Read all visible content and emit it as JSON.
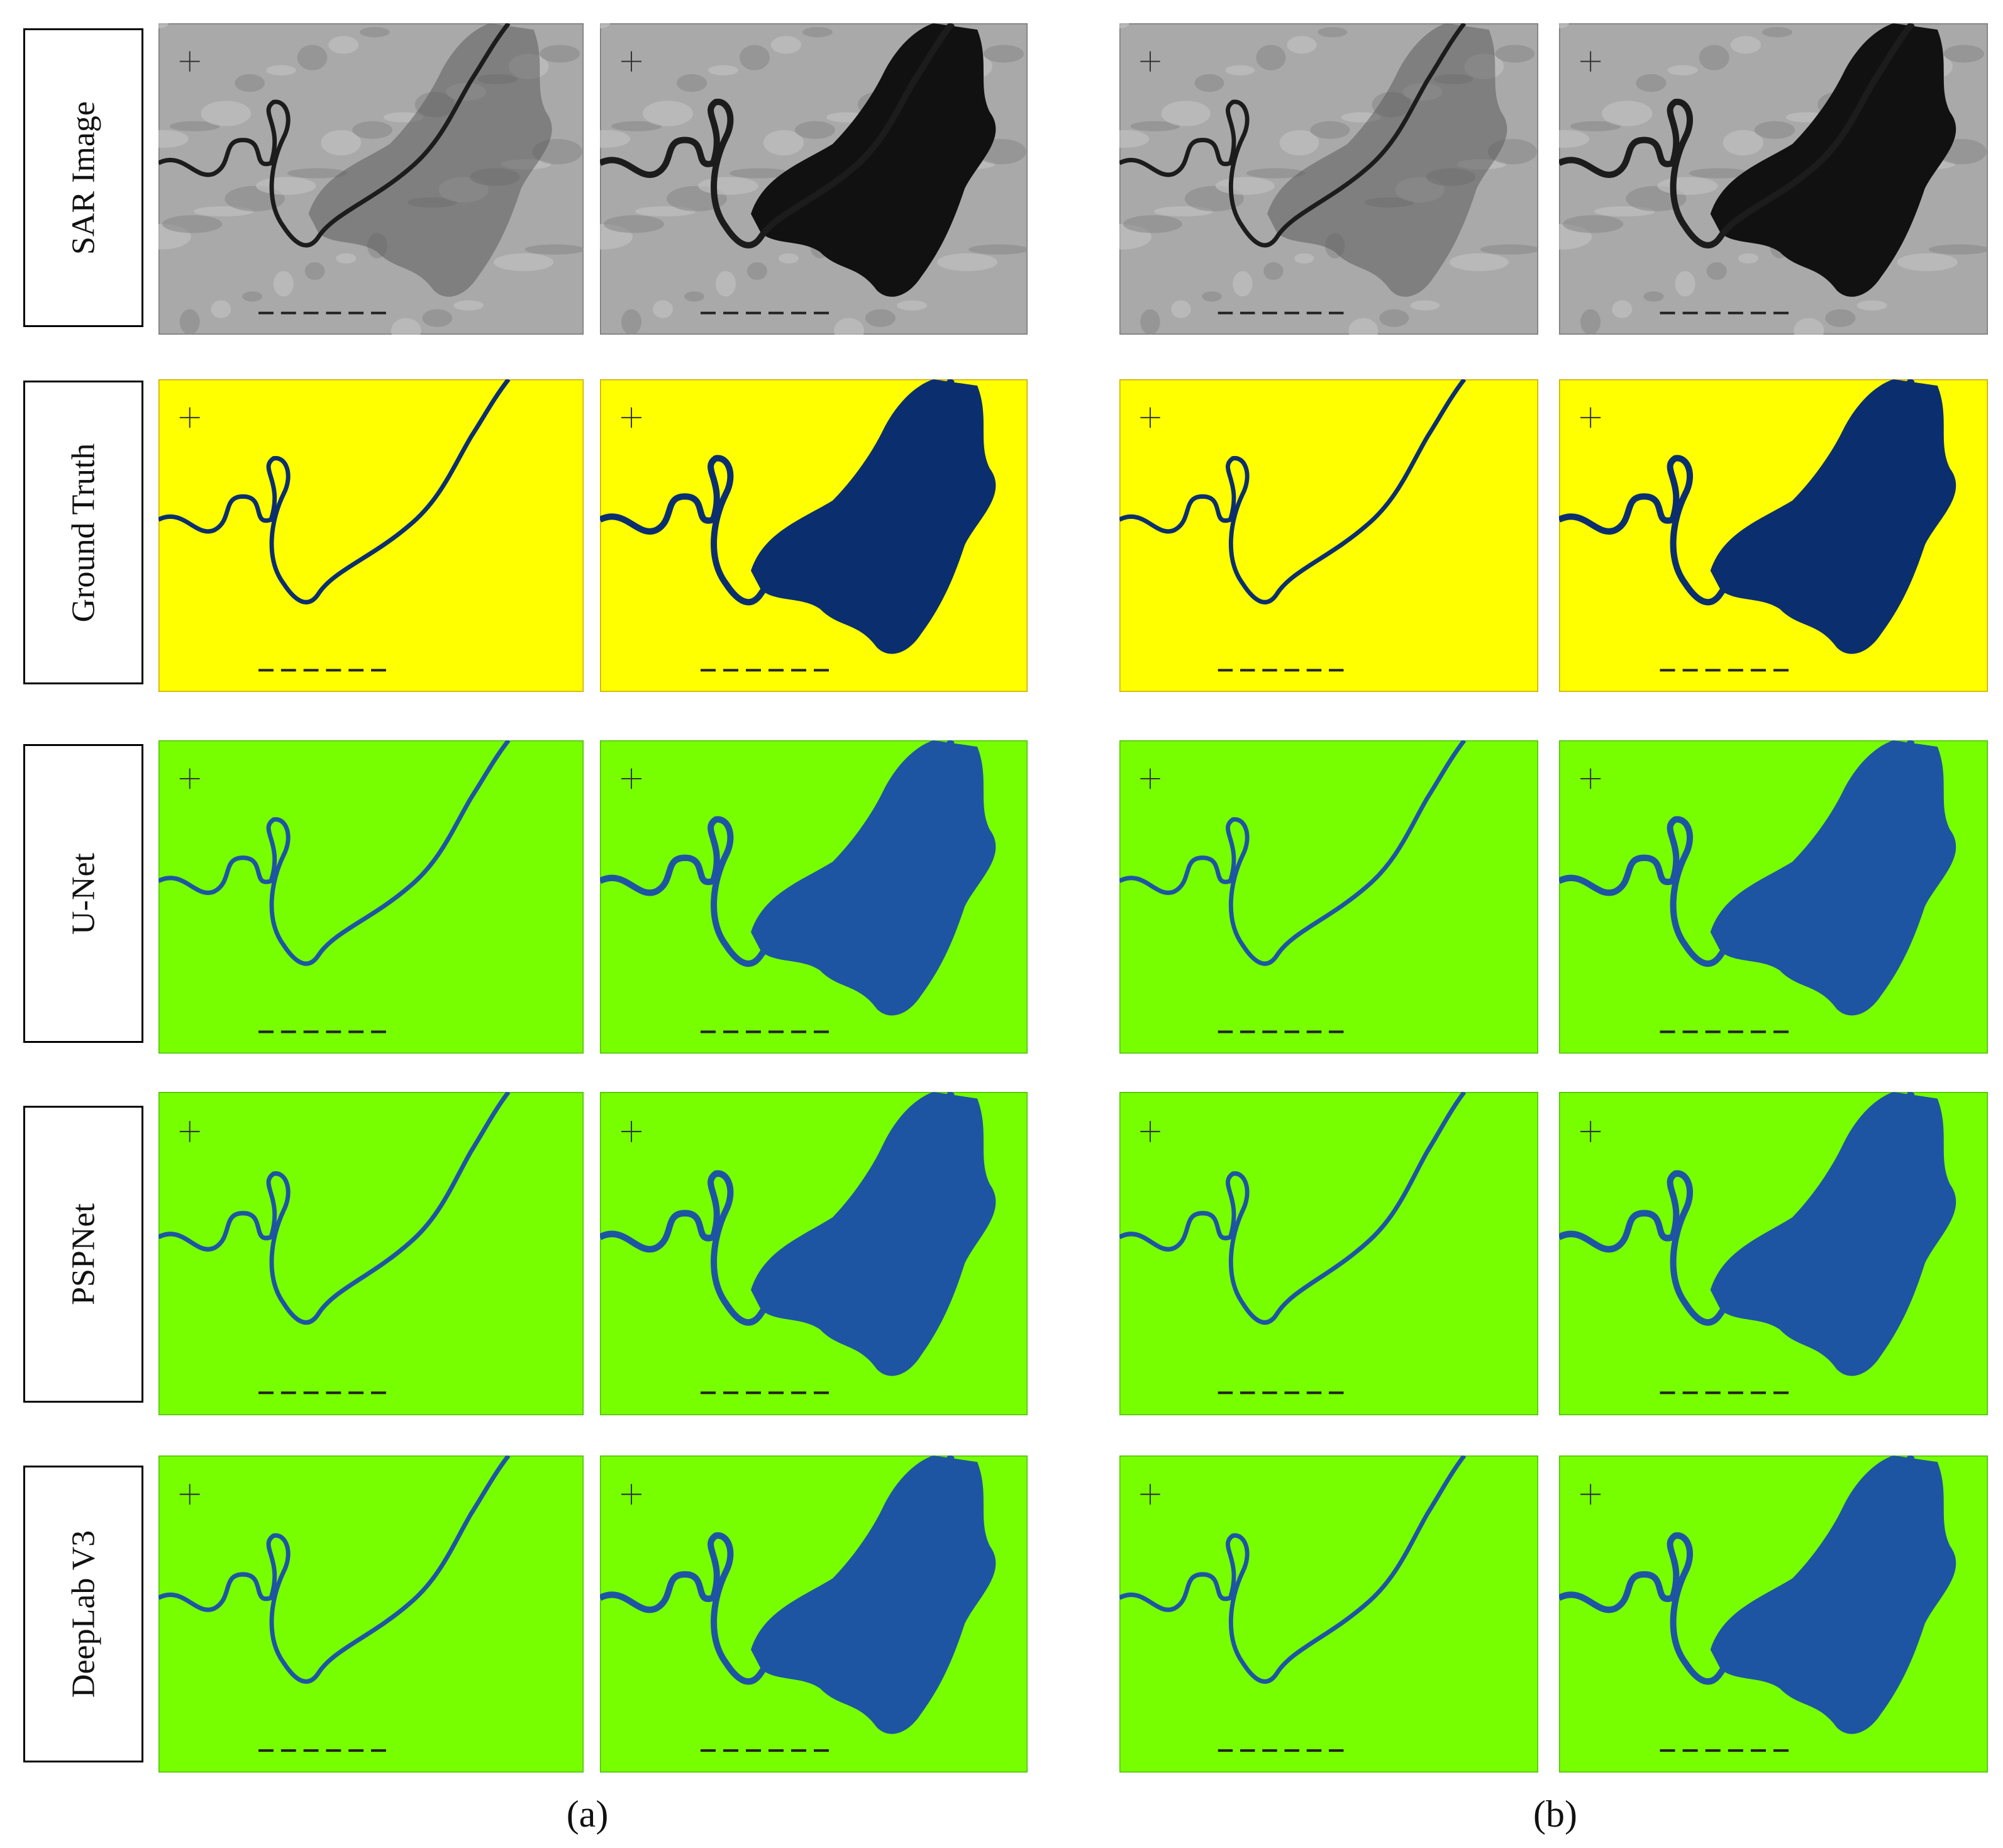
{
  "row_labels": [
    "SAR Image",
    "Ground Truth",
    "U-Net",
    "PSPNet",
    "DeepLab V3"
  ],
  "captions": [
    "(a)",
    "(b)"
  ]
}
